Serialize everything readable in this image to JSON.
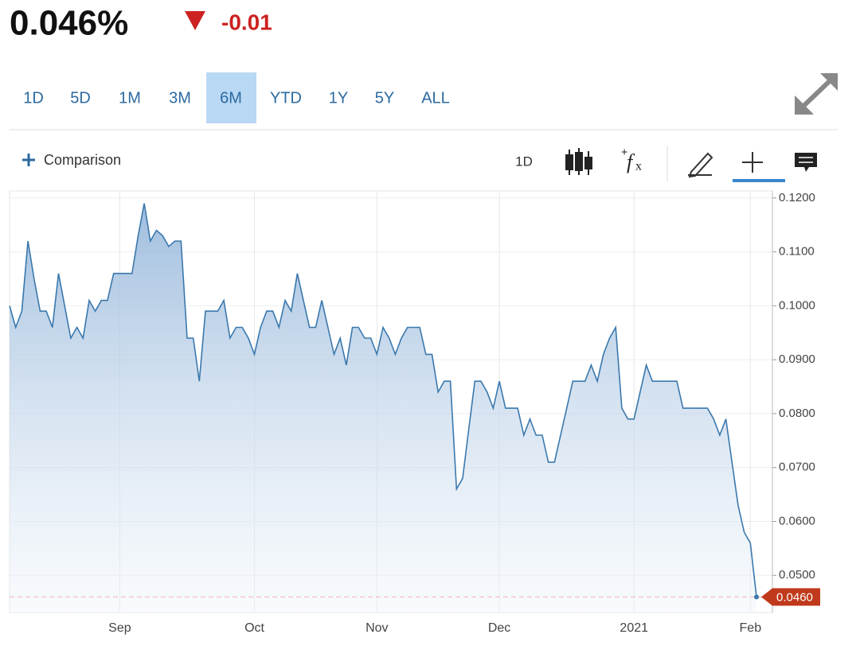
{
  "header": {
    "price": "0.046%",
    "change": "-0.01"
  },
  "ranges": {
    "items": [
      "1D",
      "5D",
      "1M",
      "3M",
      "6M",
      "YTD",
      "1Y",
      "5Y",
      "ALL"
    ],
    "selected": 4
  },
  "toolbar": {
    "comparison": "Comparison",
    "interval": "1D"
  },
  "chart_data": {
    "type": "area",
    "color": "#3a78ad",
    "categories": [
      null,
      null,
      null,
      null,
      null,
      null,
      null,
      null,
      null,
      null,
      null,
      null,
      null,
      null,
      null,
      null,
      null,
      null,
      "Sep",
      null,
      null,
      null,
      null,
      null,
      null,
      null,
      null,
      null,
      null,
      null,
      null,
      null,
      null,
      null,
      null,
      null,
      null,
      null,
      null,
      null,
      "Oct",
      null,
      null,
      null,
      null,
      null,
      null,
      null,
      null,
      null,
      null,
      null,
      null,
      null,
      null,
      null,
      null,
      null,
      null,
      null,
      "Nov",
      null,
      null,
      null,
      null,
      null,
      null,
      null,
      null,
      null,
      null,
      null,
      null,
      null,
      null,
      null,
      null,
      null,
      null,
      null,
      "Dec",
      null,
      null,
      null,
      null,
      null,
      null,
      null,
      null,
      null,
      null,
      null,
      null,
      null,
      null,
      null,
      null,
      null,
      null,
      null,
      null,
      null,
      "2021",
      null,
      null,
      null,
      null,
      null,
      null,
      null,
      null,
      null,
      null,
      null,
      null,
      null,
      null,
      null,
      null,
      null,
      null,
      "Feb",
      null
    ],
    "values": [
      0.1,
      0.096,
      0.099,
      0.112,
      0.105,
      0.099,
      0.099,
      0.096,
      0.106,
      0.1,
      0.094,
      0.096,
      0.094,
      0.101,
      0.099,
      0.101,
      0.101,
      0.106,
      0.106,
      0.106,
      0.106,
      0.113,
      0.119,
      0.112,
      0.114,
      0.113,
      0.111,
      0.112,
      0.112,
      0.094,
      0.094,
      0.086,
      0.099,
      0.099,
      0.099,
      0.101,
      0.094,
      0.096,
      0.096,
      0.094,
      0.091,
      0.096,
      0.099,
      0.099,
      0.096,
      0.101,
      0.099,
      0.106,
      0.101,
      0.096,
      0.096,
      0.101,
      0.096,
      0.091,
      0.094,
      0.089,
      0.096,
      0.096,
      0.094,
      0.094,
      0.091,
      0.096,
      0.094,
      0.091,
      0.094,
      0.096,
      0.096,
      0.096,
      0.091,
      0.091,
      0.084,
      0.086,
      0.086,
      0.066,
      0.068,
      0.077,
      0.086,
      0.086,
      0.084,
      0.081,
      0.086,
      0.081,
      0.081,
      0.081,
      0.076,
      0.079,
      0.076,
      0.076,
      0.071,
      0.071,
      0.076,
      0.081,
      0.086,
      0.086,
      0.086,
      0.089,
      0.086,
      0.091,
      0.094,
      0.096,
      0.081,
      0.079,
      0.079,
      0.084,
      0.089,
      0.086,
      0.086,
      0.086,
      0.086,
      0.086,
      0.081,
      0.081,
      0.081,
      0.081,
      0.081,
      0.079,
      0.076,
      0.079,
      0.071,
      0.063,
      0.058,
      0.056,
      0.046
    ],
    "last_price": {
      "value": 0.046,
      "label": "0.0460"
    },
    "ylim": [
      0.0431,
      0.1213
    ],
    "yticks": [
      {
        "value": 0.05,
        "label": "0.0500"
      },
      {
        "value": 0.06,
        "label": "0.0600"
      },
      {
        "value": 0.07,
        "label": "0.0700"
      },
      {
        "value": 0.08,
        "label": "0.0800"
      },
      {
        "value": 0.09,
        "label": "0.0900"
      },
      {
        "value": 0.1,
        "label": "0.1000"
      },
      {
        "value": 0.11,
        "label": "0.1100"
      },
      {
        "value": 0.12,
        "label": "0.1200"
      }
    ],
    "grid": true
  }
}
